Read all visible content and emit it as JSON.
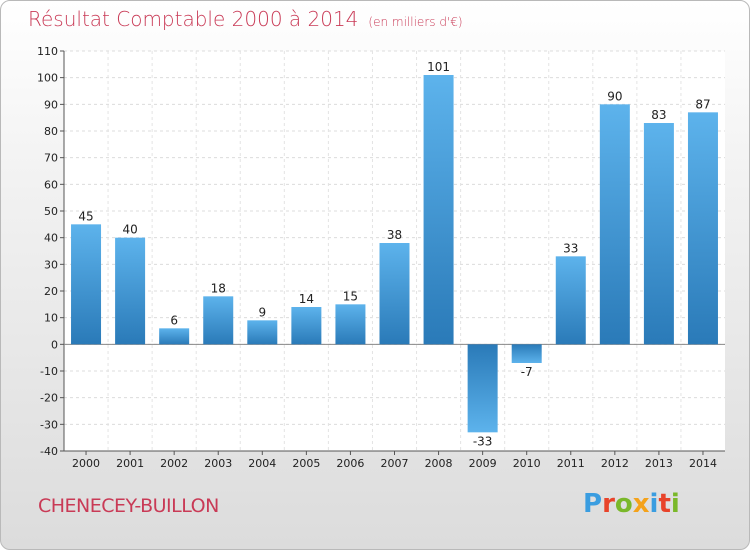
{
  "header": {
    "title": "Résultat Comptable 2000 à 2014",
    "subtitle": "(en milliers d'€)"
  },
  "footer": {
    "commune": "CHENECEY-BUILLON",
    "logo_text": "Proxiti"
  },
  "colors": {
    "bar_top": "#5db3ec",
    "bar_bottom": "#2a7ab8",
    "title": "#c93a56",
    "logo": [
      "#3a9de0",
      "#e8432a",
      "#7ab82a",
      "#f4a21a",
      "#3a9de0",
      "#e8432a",
      "#7ab82a"
    ]
  },
  "chart_data": {
    "type": "bar",
    "title": "Résultat Comptable 2000 à 2014",
    "subtitle": "(en milliers d'€)",
    "categories": [
      "2000",
      "2001",
      "2002",
      "2003",
      "2004",
      "2005",
      "2006",
      "2007",
      "2008",
      "2009",
      "2010",
      "2011",
      "2012",
      "2013",
      "2014"
    ],
    "values": [
      45,
      40,
      6,
      18,
      9,
      14,
      15,
      38,
      101,
      -33,
      -7,
      33,
      90,
      83,
      87
    ],
    "data_labels": [
      "45",
      "40",
      "6",
      "18",
      "9",
      "14",
      "15",
      "38",
      "101",
      "-33",
      "-7",
      "33",
      "90",
      "83",
      "87"
    ],
    "ylim": [
      -40,
      110
    ],
    "yticks": [
      -40,
      -30,
      -20,
      -10,
      0,
      10,
      20,
      30,
      40,
      50,
      60,
      70,
      80,
      90,
      100,
      110
    ],
    "grid": "horizontal",
    "legend": "none"
  }
}
